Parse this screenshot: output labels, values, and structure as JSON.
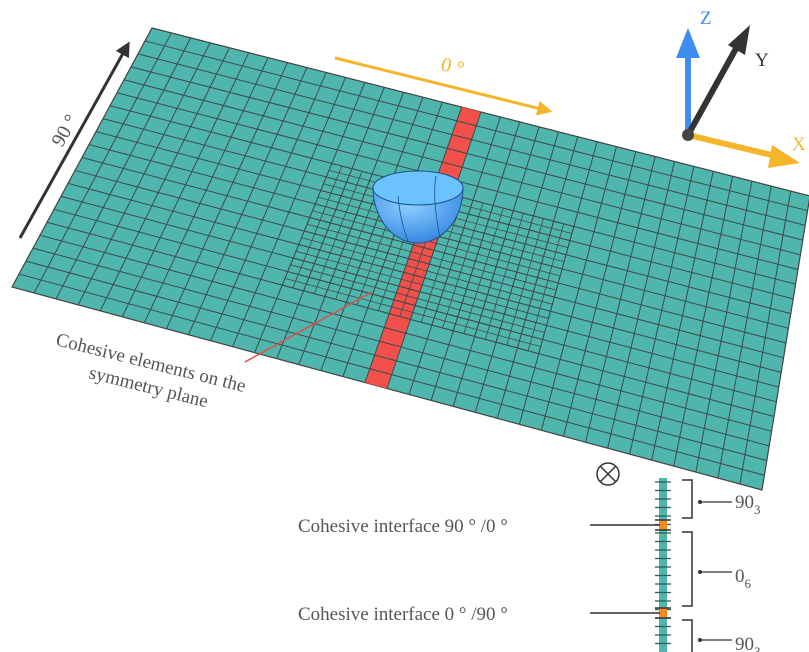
{
  "angle_labels": {
    "ninety": "90 °",
    "zero": "0 °"
  },
  "axes": {
    "z": "Z",
    "y": "Y",
    "x": "X"
  },
  "cohesive_label": {
    "line1": "Cohesive elements on the",
    "line2": "symmetry plane"
  },
  "stack": {
    "interfaces": [
      "Cohesive interface 90 ° /0 °",
      "Cohesive interface 0 ° /90 °"
    ],
    "plies": [
      {
        "base": "90",
        "sub": "3"
      },
      {
        "base": "0",
        "sub": "6"
      },
      {
        "base": "90",
        "sub": "3"
      }
    ]
  }
}
